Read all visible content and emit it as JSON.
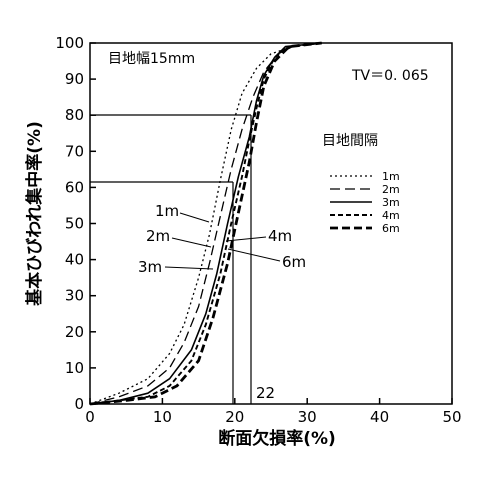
{
  "chart_data": {
    "type": "line",
    "xlabel": "断面欠損率(%)",
    "ylabel": "基本ひびわれ集中率(%)",
    "xlim": [
      0,
      50
    ],
    "ylim": [
      0,
      100
    ],
    "xticks": [
      "0",
      "10",
      "20",
      "30",
      "40",
      "50"
    ],
    "yticks": [
      "0",
      "10",
      "20",
      "30",
      "40",
      "50",
      "60",
      "70",
      "80",
      "90",
      "100"
    ],
    "grid": false,
    "annotations": {
      "joint_width": "目地幅15mm",
      "tv": "TV＝0. 065",
      "legend_title": "目地間隔",
      "x_marker_label": "22"
    },
    "reference_lines": [
      {
        "y": 80,
        "x": 22
      },
      {
        "y": 62,
        "x": 20
      }
    ],
    "legend_position": "right",
    "series": [
      {
        "name": "1m",
        "style": "dotted",
        "x": [
          0,
          4,
          8,
          11,
          13,
          15,
          16.5,
          18,
          19.5,
          21,
          23,
          25,
          28,
          32
        ],
        "y": [
          0,
          3,
          7,
          14,
          22,
          35,
          47,
          62,
          76,
          86,
          93,
          97,
          99,
          100
        ]
      },
      {
        "name": "2m",
        "style": "dashed",
        "x": [
          0,
          4,
          8,
          11,
          13,
          15,
          16.5,
          18,
          19.5,
          21,
          22.5,
          24,
          26,
          28,
          32
        ],
        "y": [
          0,
          2,
          5,
          10,
          17,
          27,
          39,
          52,
          65,
          76,
          85,
          92,
          97,
          99,
          100
        ]
      },
      {
        "name": "3m",
        "style": "solid",
        "x": [
          0,
          4,
          8,
          11,
          14,
          16,
          17.5,
          19,
          20.5,
          22,
          23,
          24,
          25.5,
          27,
          32
        ],
        "y": [
          0,
          1,
          3,
          7,
          15,
          25,
          36,
          50,
          63,
          74,
          84,
          91,
          96,
          99,
          100
        ]
      },
      {
        "name": "4m",
        "style": "short-dash",
        "x": [
          0,
          4,
          8,
          11,
          14,
          16,
          18,
          19.5,
          21,
          22,
          23,
          24,
          25.5,
          27.5,
          32
        ],
        "y": [
          0,
          1,
          2,
          5,
          12,
          22,
          36,
          50,
          63,
          73,
          82,
          90,
          96,
          99,
          100
        ]
      },
      {
        "name": "6m",
        "style": "bold-dash",
        "x": [
          0,
          5,
          9,
          12,
          15,
          17,
          19,
          20.5,
          22,
          23,
          24,
          25.5,
          27.5,
          32
        ],
        "y": [
          0,
          1,
          2,
          5,
          12,
          24,
          39,
          53,
          67,
          78,
          88,
          95,
          99,
          100
        ]
      }
    ],
    "curve_labels": [
      "1m",
      "2m",
      "3m",
      "4m",
      "6m"
    ]
  }
}
